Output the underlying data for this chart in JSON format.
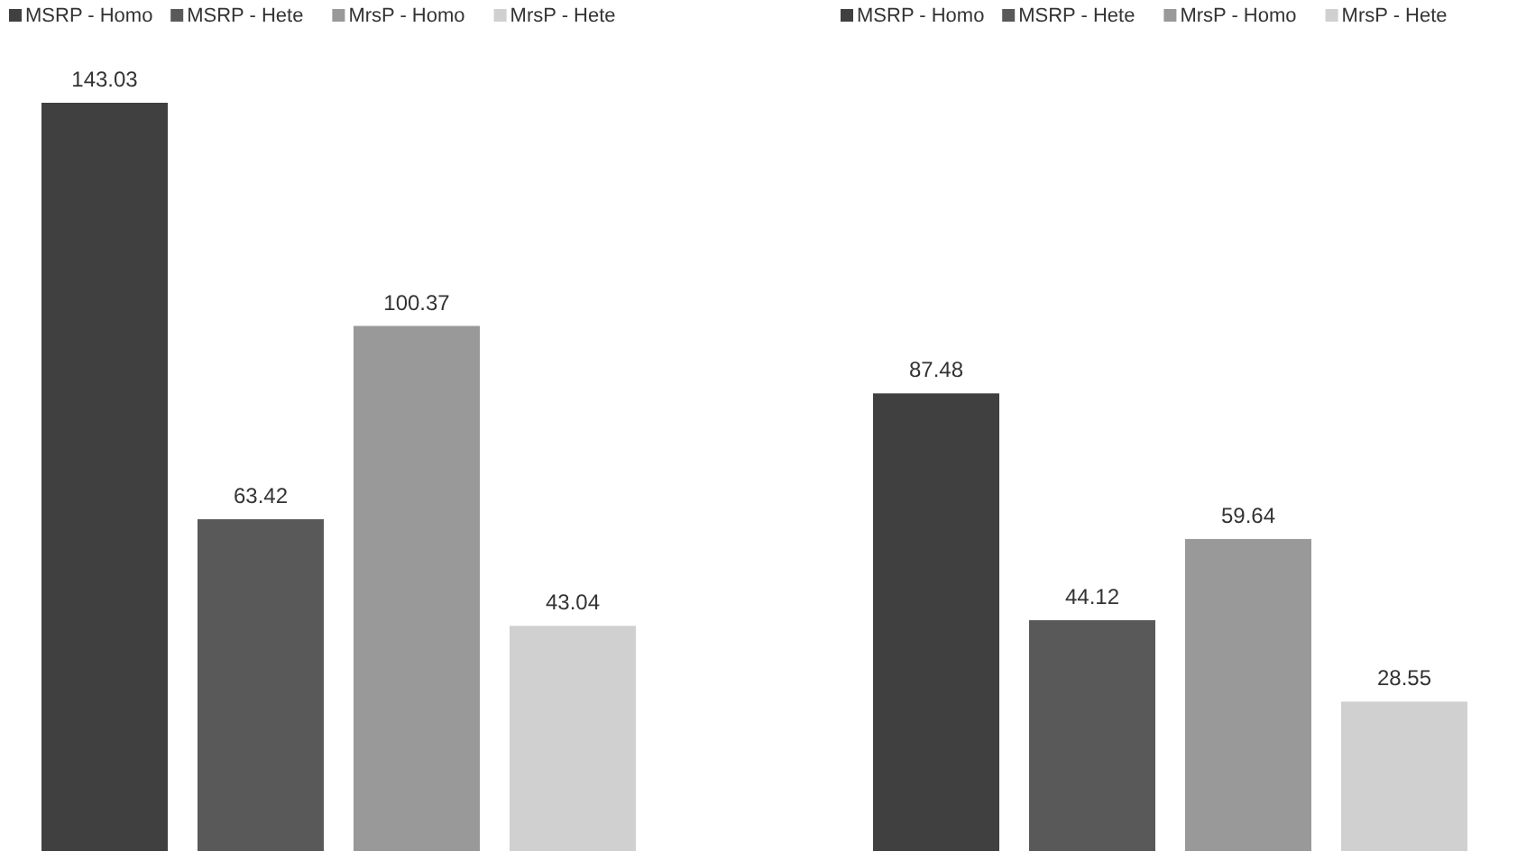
{
  "chart_data": [
    {
      "type": "bar",
      "categories": [
        null
      ],
      "legend": "top",
      "data_labels": true,
      "series": [
        {
          "name": "MSRP - Homo",
          "color": "#404040",
          "values": [
            143.03
          ]
        },
        {
          "name": "MSRP - Hete",
          "color": "#595959",
          "values": [
            63.42
          ]
        },
        {
          "name": "MrsP - Homo",
          "color": "#999999",
          "values": [
            100.37
          ]
        },
        {
          "name": "MrsP - Hete",
          "color": "#d0d0d0",
          "values": [
            43.04
          ]
        }
      ]
    },
    {
      "type": "bar",
      "categories": [
        null
      ],
      "legend": "top",
      "data_labels": true,
      "series": [
        {
          "name": "MSRP - Homo",
          "color": "#404040",
          "values": [
            87.48
          ]
        },
        {
          "name": "MSRP - Hete",
          "color": "#595959",
          "values": [
            44.12
          ]
        },
        {
          "name": "MrsP - Homo",
          "color": "#999999",
          "values": [
            59.64
          ]
        },
        {
          "name": "MrsP - Hete",
          "color": "#d0d0d0",
          "values": [
            28.55
          ]
        }
      ]
    }
  ]
}
